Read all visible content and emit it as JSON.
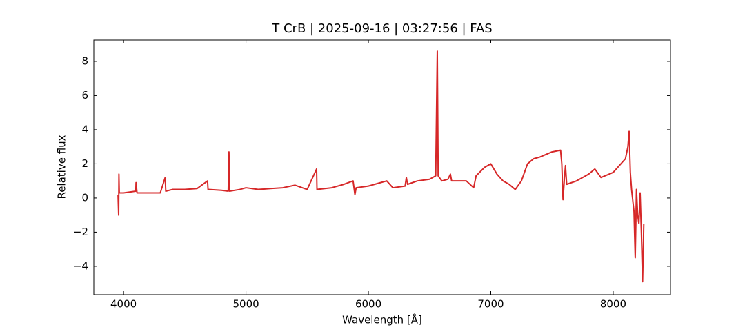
{
  "chart_data": {
    "type": "line",
    "title": "T CrB | 2025-09-16 | 03:27:56 | FAS",
    "x_label": "Wavelength [Å]",
    "y_label": "Relative flux",
    "xlim": [
      3757,
      8468
    ],
    "ylim": [
      -5.66,
      9.25
    ],
    "xticks": [
      4000,
      5000,
      6000,
      7000,
      8000
    ],
    "yticks": [
      {
        "value": -4,
        "label": "−4"
      },
      {
        "value": -2,
        "label": "−2"
      },
      0,
      2,
      4,
      6,
      8
    ],
    "grid": false,
    "series": [
      {
        "color": "#d62728",
        "x": [
          3955,
          3960,
          3962,
          3965,
          4000,
          4100,
          4102,
          4110,
          4200,
          4300,
          4340,
          4345,
          4400,
          4500,
          4600,
          4686,
          4690,
          4800,
          4855,
          4861,
          4866,
          4950,
          5000,
          5100,
          5200,
          5300,
          5400,
          5500,
          5577,
          5580,
          5700,
          5800,
          5875,
          5890,
          5900,
          6000,
          6100,
          6150,
          6200,
          6300,
          6310,
          6320,
          6400,
          6500,
          6550,
          6563,
          6570,
          6600,
          6650,
          6670,
          6680,
          6800,
          6860,
          6880,
          6950,
          7000,
          7050,
          7100,
          7150,
          7200,
          7250,
          7300,
          7350,
          7400,
          7500,
          7570,
          7580,
          7590,
          7600,
          7610,
          7620,
          7700,
          7800,
          7850,
          7900,
          8000,
          8100,
          8120,
          8130,
          8140,
          8150,
          8170,
          8180,
          8190,
          8200,
          8210,
          8220,
          8230,
          8240,
          8250
        ],
        "values": [
          0.2,
          -1.0,
          1.4,
          0.3,
          0.3,
          0.4,
          0.9,
          0.3,
          0.3,
          0.3,
          1.2,
          0.4,
          0.5,
          0.5,
          0.55,
          1.0,
          0.5,
          0.45,
          0.4,
          2.7,
          0.4,
          0.5,
          0.6,
          0.5,
          0.55,
          0.6,
          0.75,
          0.5,
          1.7,
          0.5,
          0.6,
          0.8,
          1.0,
          0.2,
          0.6,
          0.7,
          0.9,
          1.0,
          0.6,
          0.7,
          1.2,
          0.8,
          1.0,
          1.1,
          1.3,
          8.6,
          1.3,
          1.0,
          1.1,
          1.4,
          1.0,
          1.0,
          0.6,
          1.3,
          1.8,
          2.0,
          1.4,
          1.0,
          0.8,
          0.5,
          1.0,
          2.0,
          2.3,
          2.4,
          2.7,
          2.8,
          2.0,
          -0.1,
          1.0,
          1.9,
          0.8,
          1.0,
          1.4,
          1.7,
          1.2,
          1.5,
          2.3,
          3.0,
          3.9,
          1.5,
          0.5,
          -0.8,
          -3.5,
          0.5,
          -1.0,
          -1.5,
          0.3,
          -2.0,
          -4.9,
          -1.5
        ]
      }
    ]
  }
}
